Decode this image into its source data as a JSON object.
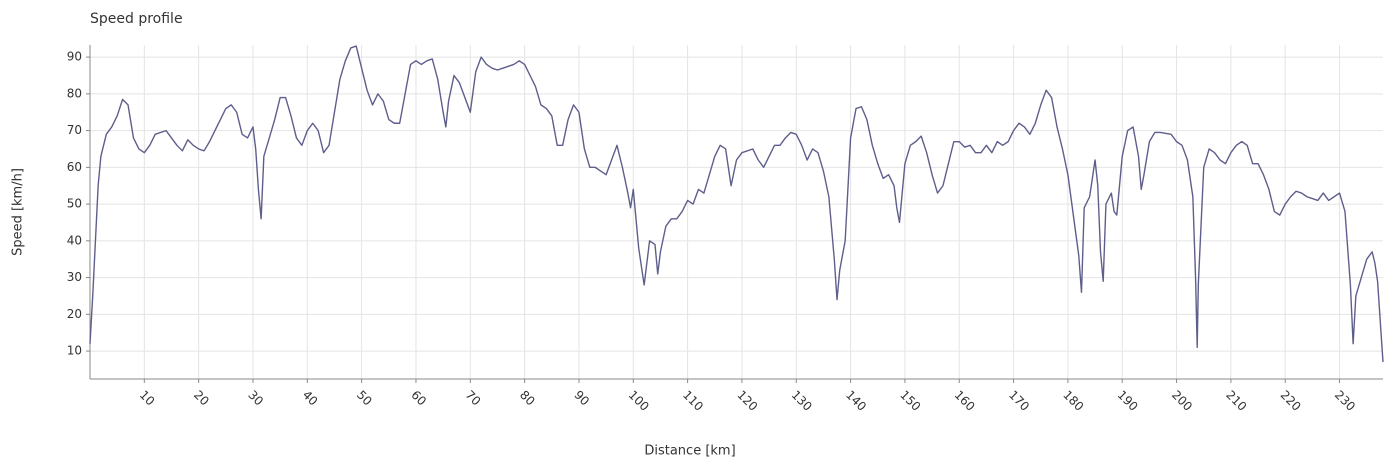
{
  "chart_data": {
    "type": "line",
    "title": "Speed profile",
    "x_label": "Distance [km]",
    "y_label": "Speed [km/h]",
    "color": "#5e5e8c",
    "grid": true,
    "xlim": [
      0,
      238
    ],
    "ylim": [
      2.4,
      93.3
    ],
    "xticks": [
      10,
      20,
      30,
      40,
      50,
      60,
      70,
      80,
      90,
      100,
      110,
      120,
      130,
      140,
      150,
      160,
      170,
      180,
      190,
      200,
      210,
      220,
      230
    ],
    "yticks": [
      10,
      20,
      30,
      40,
      50,
      60,
      70,
      80,
      90
    ],
    "x": [
      0,
      0.5,
      1,
      1.5,
      2,
      3,
      4,
      5,
      6,
      7,
      8,
      9,
      10,
      11,
      12,
      14,
      15,
      16,
      17,
      18,
      19,
      20,
      21,
      22,
      23,
      25,
      26,
      27,
      28,
      29,
      30,
      30.5,
      31,
      31.5,
      32,
      34,
      35,
      36,
      37,
      38,
      39,
      40,
      41,
      42,
      43,
      44,
      45,
      46,
      47,
      48,
      49,
      50,
      51,
      52,
      53,
      54,
      55,
      56,
      57,
      58,
      59,
      60,
      61,
      62,
      63,
      64,
      65,
      65.5,
      66,
      67,
      68,
      69,
      70,
      71,
      72,
      73,
      74,
      75,
      76,
      77,
      78,
      79,
      80,
      81,
      82,
      83,
      84,
      85,
      86,
      87,
      88,
      89,
      90,
      91,
      92,
      93,
      94,
      95,
      96,
      97,
      98,
      99,
      99.5,
      100,
      101,
      102,
      103,
      104,
      104.5,
      105,
      106,
      107,
      108,
      109,
      110,
      111,
      112,
      113,
      114,
      115,
      116,
      117,
      118,
      119,
      120,
      122,
      123,
      124,
      125,
      126,
      127,
      128,
      129,
      130,
      131,
      132,
      133,
      134,
      135,
      136,
      137,
      137.5,
      138,
      139,
      140,
      141,
      142,
      143,
      144,
      145,
      146,
      147,
      148,
      148.5,
      149,
      150,
      151,
      152,
      153,
      154,
      155,
      156,
      157,
      158,
      159,
      160,
      161,
      162,
      163,
      164,
      165,
      166,
      167,
      168,
      169,
      170,
      171,
      172,
      173,
      174,
      175,
      176,
      177,
      178,
      179,
      180,
      181,
      182,
      182.5,
      183,
      184,
      185,
      185.5,
      186,
      186.5,
      187,
      188,
      188.5,
      189,
      190,
      191,
      192,
      193,
      193.5,
      194,
      195,
      196,
      197,
      199,
      200,
      201,
      202,
      203,
      203.5,
      203.8,
      204,
      205,
      206,
      207,
      208,
      209,
      210,
      211,
      212,
      213,
      214,
      215,
      216,
      217,
      218,
      219,
      220,
      221,
      222,
      223,
      224,
      225,
      226,
      227,
      228,
      229,
      230,
      231,
      232,
      232.5,
      233,
      234,
      235,
      236,
      236.5,
      237,
      238
    ],
    "values": [
      12,
      25,
      40,
      55,
      63,
      69,
      71,
      74,
      78.5,
      77,
      68,
      65,
      64,
      66,
      69,
      70,
      68,
      66,
      64.5,
      67.5,
      66,
      65,
      64.5,
      67,
      70,
      76,
      77,
      75,
      69,
      68,
      71,
      65,
      54,
      46,
      63,
      73,
      79,
      79,
      74,
      68,
      66,
      70,
      72,
      70,
      64,
      66,
      75,
      84,
      89,
      92.5,
      93,
      87,
      81,
      77,
      80,
      78,
      73,
      72,
      72,
      80,
      88,
      89,
      88,
      89,
      89.5,
      84,
      75,
      71,
      78,
      85,
      83,
      79,
      75,
      86,
      90,
      88,
      87,
      86.5,
      87,
      87.5,
      88,
      89,
      88,
      85,
      82,
      77,
      76,
      74,
      66,
      66,
      73,
      77,
      75,
      65,
      60,
      60,
      59,
      58,
      62,
      66,
      60,
      53,
      49,
      54,
      38,
      28,
      40,
      39,
      31,
      37,
      44,
      46,
      46,
      48,
      51,
      50,
      54,
      53,
      58,
      63,
      66,
      65,
      55,
      62,
      64,
      65,
      62,
      60,
      63,
      66,
      66,
      68,
      69.5,
      69,
      66,
      62,
      65,
      64,
      59,
      52,
      35,
      24,
      32,
      40,
      68,
      76,
      76.5,
      73,
      66,
      61,
      57,
      58,
      55,
      49,
      45,
      61,
      66,
      67,
      68.5,
      64,
      58,
      53,
      55,
      61,
      67,
      67,
      65.5,
      66,
      64,
      64,
      66,
      64,
      67,
      66,
      67,
      70,
      72,
      71,
      69,
      72,
      77,
      81,
      79,
      71,
      65,
      58,
      47,
      36,
      26,
      49,
      52,
      62,
      55,
      37,
      29,
      50,
      53,
      48,
      47,
      63,
      70,
      71,
      63,
      54,
      58,
      67,
      69.5,
      69.5,
      69,
      67,
      66,
      62,
      52,
      30,
      11,
      28,
      60,
      65,
      64,
      62,
      61,
      64,
      66,
      67,
      66,
      61,
      61,
      58,
      54,
      48,
      47,
      50,
      52,
      53.5,
      53,
      52,
      51.5,
      51,
      53,
      51,
      52,
      53,
      48,
      28,
      12,
      25,
      30,
      35,
      37,
      34,
      29,
      7
    ]
  }
}
